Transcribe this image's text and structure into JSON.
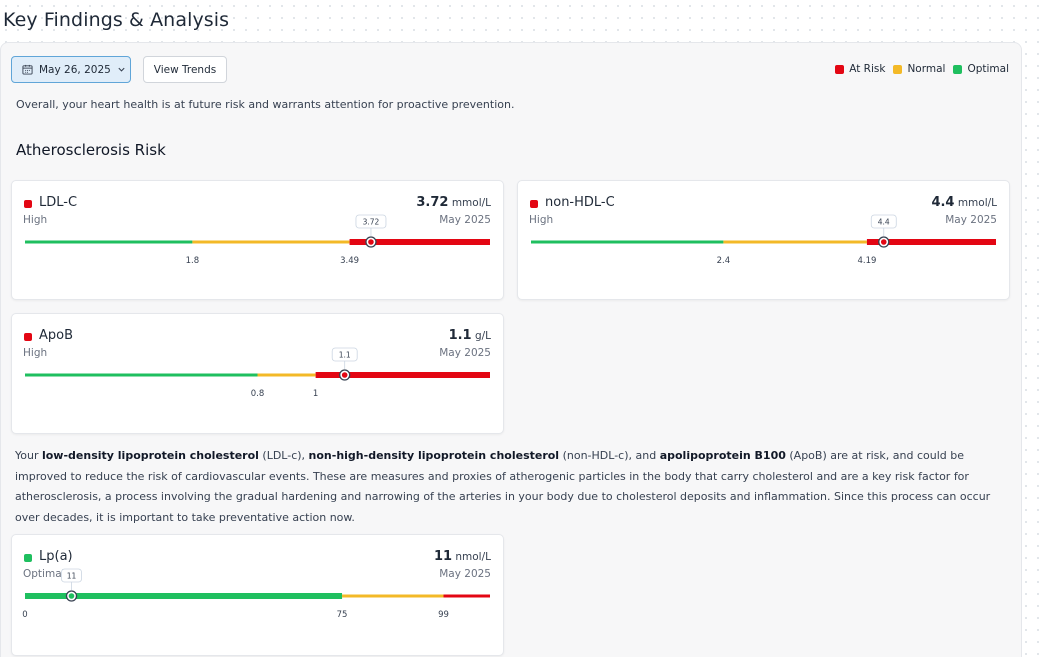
{
  "page": {
    "title": "Key Findings & Analysis"
  },
  "toolbar": {
    "date_label": "May 26, 2025",
    "date_icon": "calendar-icon",
    "view_trends_label": "View Trends"
  },
  "legend": [
    {
      "label": "At Risk",
      "color": "#e30613"
    },
    {
      "label": "Normal",
      "color": "#f3b927"
    },
    {
      "label": "Optimal",
      "color": "#1fbf5f"
    }
  ],
  "summary": "Overall, your heart health is at future risk and warrants attention for proactive prevention.",
  "section": {
    "title": "Atherosclerosis Risk"
  },
  "colors": {
    "at_risk": "#e30613",
    "normal": "#f3b927",
    "optimal": "#1fbf5f"
  },
  "cards": [
    {
      "name": "LDL-C",
      "status": "High",
      "value": "3.72",
      "unit": "mmol/L",
      "date": "May 2025",
      "status_color": "#e30613",
      "segments": [
        {
          "color": "#1fbf5f",
          "from": 0.0,
          "to": 1.8
        },
        {
          "color": "#f3b927",
          "from": 1.8,
          "to": 3.49
        },
        {
          "color": "#e30613",
          "from": 3.49,
          "to": 5.0
        }
      ],
      "range": [
        0.0,
        5.0
      ],
      "thresholds": [
        "1.8",
        "3.49"
      ],
      "marker": 3.72,
      "marker_label": "3.72"
    },
    {
      "name": "non-HDL-C",
      "status": "High",
      "value": "4.4",
      "unit": "mmol/L",
      "date": "May 2025",
      "status_color": "#e30613",
      "segments": [
        {
          "color": "#1fbf5f",
          "from": 0.0,
          "to": 2.4
        },
        {
          "color": "#f3b927",
          "from": 2.4,
          "to": 4.19
        },
        {
          "color": "#e30613",
          "from": 4.19,
          "to": 5.8
        }
      ],
      "range": [
        0.0,
        5.8
      ],
      "thresholds": [
        "2.4",
        "4.19"
      ],
      "marker": 4.4,
      "marker_label": "4.4"
    },
    {
      "name": "ApoB",
      "status": "High",
      "value": "1.1",
      "unit": "g/L",
      "date": "May 2025",
      "status_color": "#e30613",
      "segments": [
        {
          "color": "#1fbf5f",
          "from": 0.0,
          "to": 0.8
        },
        {
          "color": "#f3b927",
          "from": 0.8,
          "to": 1.0
        },
        {
          "color": "#e30613",
          "from": 1.0,
          "to": 1.6
        }
      ],
      "range": [
        0.0,
        1.6
      ],
      "thresholds": [
        "0.8",
        "1"
      ],
      "marker": 1.1,
      "marker_label": "1.1"
    },
    {
      "name": "Lp(a)",
      "status": "Optimal",
      "value": "11",
      "unit": "nmol/L",
      "date": "May 2025",
      "status_color": "#1fbf5f",
      "segments": [
        {
          "color": "#1fbf5f",
          "from": 0,
          "to": 75
        },
        {
          "color": "#f3b927",
          "from": 75,
          "to": 99
        },
        {
          "color": "#e30613",
          "from": 99,
          "to": 110
        }
      ],
      "range": [
        0,
        110
      ],
      "thresholds": [
        "0",
        "75",
        "99"
      ],
      "marker": 11,
      "marker_label": "11"
    }
  ],
  "paragraph": {
    "p1": "Your ",
    "b1": "low-density lipoprotein cholesterol",
    "p2": " (LDL-c), ",
    "b2": "non-high-density lipoprotein cholesterol",
    "p3": " (non-HDL-c), and ",
    "b3": "apolipoprotein B100",
    "p4": " (ApoB) are at risk, and could be improved to reduce the risk of cardiovascular events. These are measures and proxies of atherogenic particles in the body that carry cholesterol and are a key risk factor for atherosclerosis, a process involving the gradual hardening and narrowing of the arteries in your body due to cholesterol deposits and inflammation. Since this process can occur over decades, it is important to take preventative action now."
  }
}
